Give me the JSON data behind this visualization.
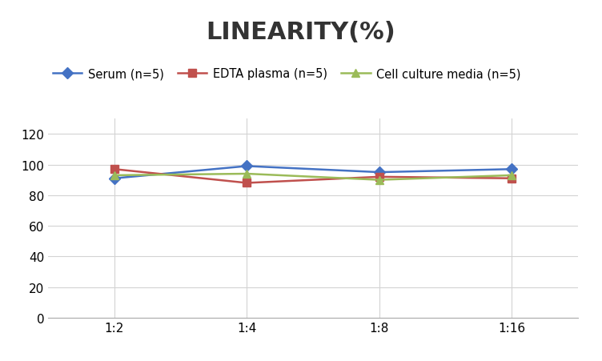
{
  "title": "LINEARITY(%)",
  "x_labels": [
    "1:2",
    "1:4",
    "1:8",
    "1:16"
  ],
  "x_positions": [
    1,
    2,
    3,
    4
  ],
  "series": [
    {
      "name": "Serum (n=5)",
      "values": [
        91,
        99,
        95,
        97
      ],
      "color": "#4472C4",
      "marker": "D",
      "markersize": 7,
      "linewidth": 1.8
    },
    {
      "name": "EDTA plasma (n=5)",
      "values": [
        97,
        88,
        92,
        91
      ],
      "color": "#C0504D",
      "marker": "s",
      "markersize": 7,
      "linewidth": 1.8
    },
    {
      "name": "Cell culture media (n=5)",
      "values": [
        93,
        94,
        90,
        93
      ],
      "color": "#9BBB59",
      "marker": "^",
      "markersize": 7,
      "linewidth": 1.8
    }
  ],
  "ylim": [
    0,
    130
  ],
  "yticks": [
    0,
    20,
    40,
    60,
    80,
    100,
    120
  ],
  "background_color": "#ffffff",
  "grid_color": "#d3d3d3",
  "title_fontsize": 22,
  "legend_fontsize": 10.5,
  "tick_fontsize": 11
}
